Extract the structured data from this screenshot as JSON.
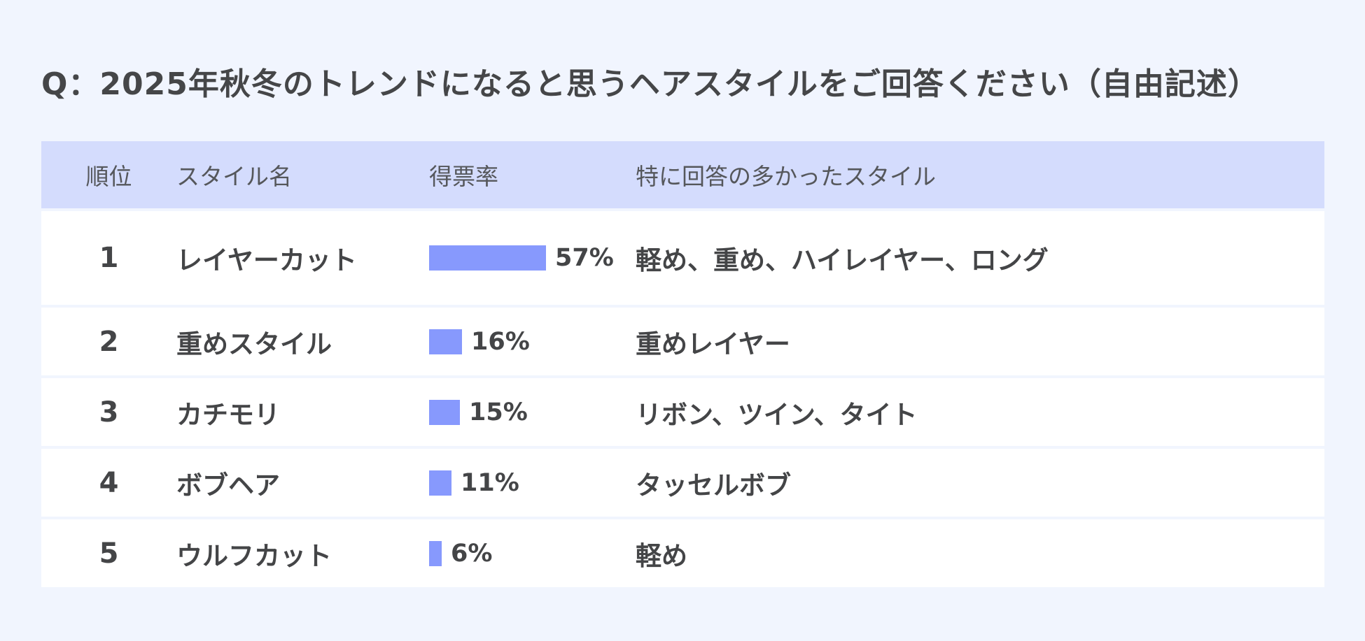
{
  "title": "Q：2025年秋冬のトレンドになると思うヘアスタイルをご回答ください（自由記述）",
  "columns": {
    "rank": "順位",
    "style": "スタイル名",
    "rate": "得票率",
    "detail": "特に回答の多かったスタイル"
  },
  "colors": {
    "bar": "#8799fd",
    "header_bg": "#d4dcfd",
    "page_bg": "#f1f5fe"
  },
  "chart_data": {
    "type": "table",
    "rows": [
      {
        "rank": "1",
        "style": "レイヤーカット",
        "value": 57,
        "label": "57%",
        "detail": "軽め、重め、ハイレイヤー、ロング"
      },
      {
        "rank": "2",
        "style": "重めスタイル",
        "value": 16,
        "label": "16%",
        "detail": "重めレイヤー"
      },
      {
        "rank": "3",
        "style": "カチモリ",
        "value": 15,
        "label": "15%",
        "detail": "リボン、ツイン、タイト"
      },
      {
        "rank": "4",
        "style": "ボブヘア",
        "value": 11,
        "label": "11%",
        "detail": "タッセルボブ"
      },
      {
        "rank": "5",
        "style": "ウルフカット",
        "value": 6,
        "label": "6%",
        "detail": "軽め"
      }
    ]
  }
}
